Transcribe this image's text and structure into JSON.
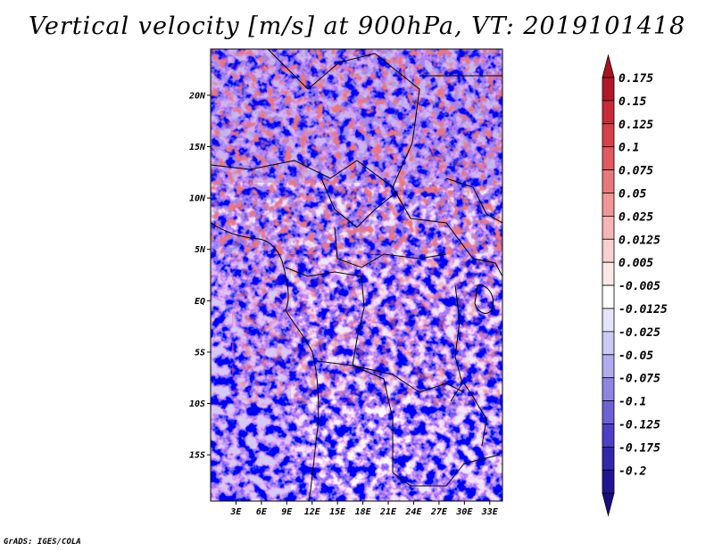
{
  "title": "Vertical velocity [m/s] at 900hPa, VT: 2019101418",
  "credit": "GrADS: IGES/COLA",
  "map": {
    "lat_labels": [
      "20N",
      "15N",
      "10N",
      "5N",
      "EQ",
      "5S",
      "10S",
      "15S"
    ],
    "lat_values": [
      20,
      15,
      10,
      5,
      0,
      -5,
      -10,
      -15
    ],
    "lon_labels": [
      "3E",
      "6E",
      "9E",
      "12E",
      "15E",
      "18E",
      "21E",
      "24E",
      "27E",
      "30E",
      "33E"
    ],
    "lon_values": [
      3,
      6,
      9,
      12,
      15,
      18,
      21,
      24,
      27,
      30,
      33
    ],
    "lon_range": [
      0,
      34.5
    ],
    "lat_range": [
      -19.5,
      24.5
    ]
  },
  "colorbar": {
    "labels": [
      "0.175",
      "0.15",
      "0.125",
      "0.1",
      "0.075",
      "0.05",
      "0.025",
      "0.0125",
      "0.005",
      "-0.005",
      "-0.0125",
      "-0.025",
      "-0.05",
      "-0.075",
      "-0.1",
      "-0.125",
      "-0.175",
      "-0.2"
    ],
    "colors": [
      "#b2182b",
      "#c92a38",
      "#d6404a",
      "#e05a60",
      "#e8797b",
      "#ef9797",
      "#f4b6b5",
      "#f8d0cf",
      "#fce7e6",
      "#ffffff",
      "#e6e4fb",
      "#cdc9f5",
      "#b0aaee",
      "#8f86e3",
      "#6c62d6",
      "#4d40c4",
      "#3327ad",
      "#221593"
    ],
    "top_color": "#a8151f",
    "bottom_color": "#1a0d80"
  }
}
